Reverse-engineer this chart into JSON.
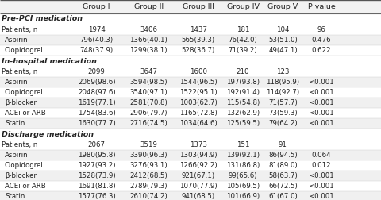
{
  "col_headers": [
    "",
    "Group I",
    "Group II",
    "Group III",
    "Group IV",
    "Group V",
    "P value"
  ],
  "sections": [
    {
      "section_title": "Pre-PCI medication",
      "rows": [
        [
          "Patients, n",
          "1974",
          "3406",
          "1437",
          "181",
          "104",
          "96"
        ],
        [
          "Aspirin",
          "796(40.3)",
          "1366(40.1)",
          "565(39.3)",
          "76(42.0)",
          "53(51.0)",
          "0.476"
        ],
        [
          "Clopidogrel",
          "748(37.9)",
          "1299(38.1)",
          "528(36.7)",
          "71(39.2)",
          "49(47.1)",
          "0.622"
        ]
      ]
    },
    {
      "section_title": "In-hospital medication",
      "rows": [
        [
          "Patients, n",
          "2099",
          "3647",
          "1600",
          "210",
          "123",
          ""
        ],
        [
          "Aspirin",
          "2069(98.6)",
          "3594(98.5)",
          "1544(96.5)",
          "197(93.8)",
          "118(95.9)",
          "<0.001"
        ],
        [
          "Clopidogrel",
          "2048(97.6)",
          "3540(97.1)",
          "1522(95.1)",
          "192(91.4)",
          "114(92.7)",
          "<0.001"
        ],
        [
          "β-blocker",
          "1619(77.1)",
          "2581(70.8)",
          "1003(62.7)",
          "115(54.8)",
          "71(57.7)",
          "<0.001"
        ],
        [
          "ACEi or ARB",
          "1754(83.6)",
          "2906(79.7)",
          "1165(72.8)",
          "132(62.9)",
          "73(59.3)",
          "<0.001"
        ],
        [
          "Statin",
          "1630(77.7)",
          "2716(74.5)",
          "1034(64.6)",
          "125(59.5)",
          "79(64.2)",
          "<0.001"
        ]
      ]
    },
    {
      "section_title": "Discharge medication",
      "rows": [
        [
          "Patients, n",
          "2067",
          "3519",
          "1373",
          "151",
          "91",
          ""
        ],
        [
          "Aspirin",
          "1980(95.8)",
          "3390(96.3)",
          "1303(94.9)",
          "139(92.1)",
          "86(94.5)",
          "0.064"
        ],
        [
          "Clopidogrel",
          "1927(93.2)",
          "3276(93.1)",
          "1266(92.2)",
          "131(86.8)",
          "81(89.0)",
          "0.012"
        ],
        [
          "β-blocker",
          "1528(73.9)",
          "2412(68.5)",
          "921(67.1)",
          "99(65.6)",
          "58(63.7)",
          "<0.001"
        ],
        [
          "ACEi or ARB",
          "1691(81.8)",
          "2789(79.3)",
          "1070(77.9)",
          "105(69.5)",
          "66(72.5)",
          "<0.001"
        ],
        [
          "Statin",
          "1577(76.3)",
          "2610(74.2)",
          "941(68.5)",
          "101(66.9)",
          "61(67.0)",
          "<0.001"
        ]
      ]
    }
  ],
  "text_color": "#222222",
  "header_fontsize": 6.8,
  "body_fontsize": 6.2,
  "section_title_fontsize": 6.8,
  "col_lefts_pct": [
    0.0,
    0.185,
    0.322,
    0.458,
    0.583,
    0.692,
    0.793,
    0.895
  ],
  "col_rights_pct": [
    0.185,
    0.322,
    0.458,
    0.583,
    0.692,
    0.793,
    0.895,
    1.0
  ]
}
